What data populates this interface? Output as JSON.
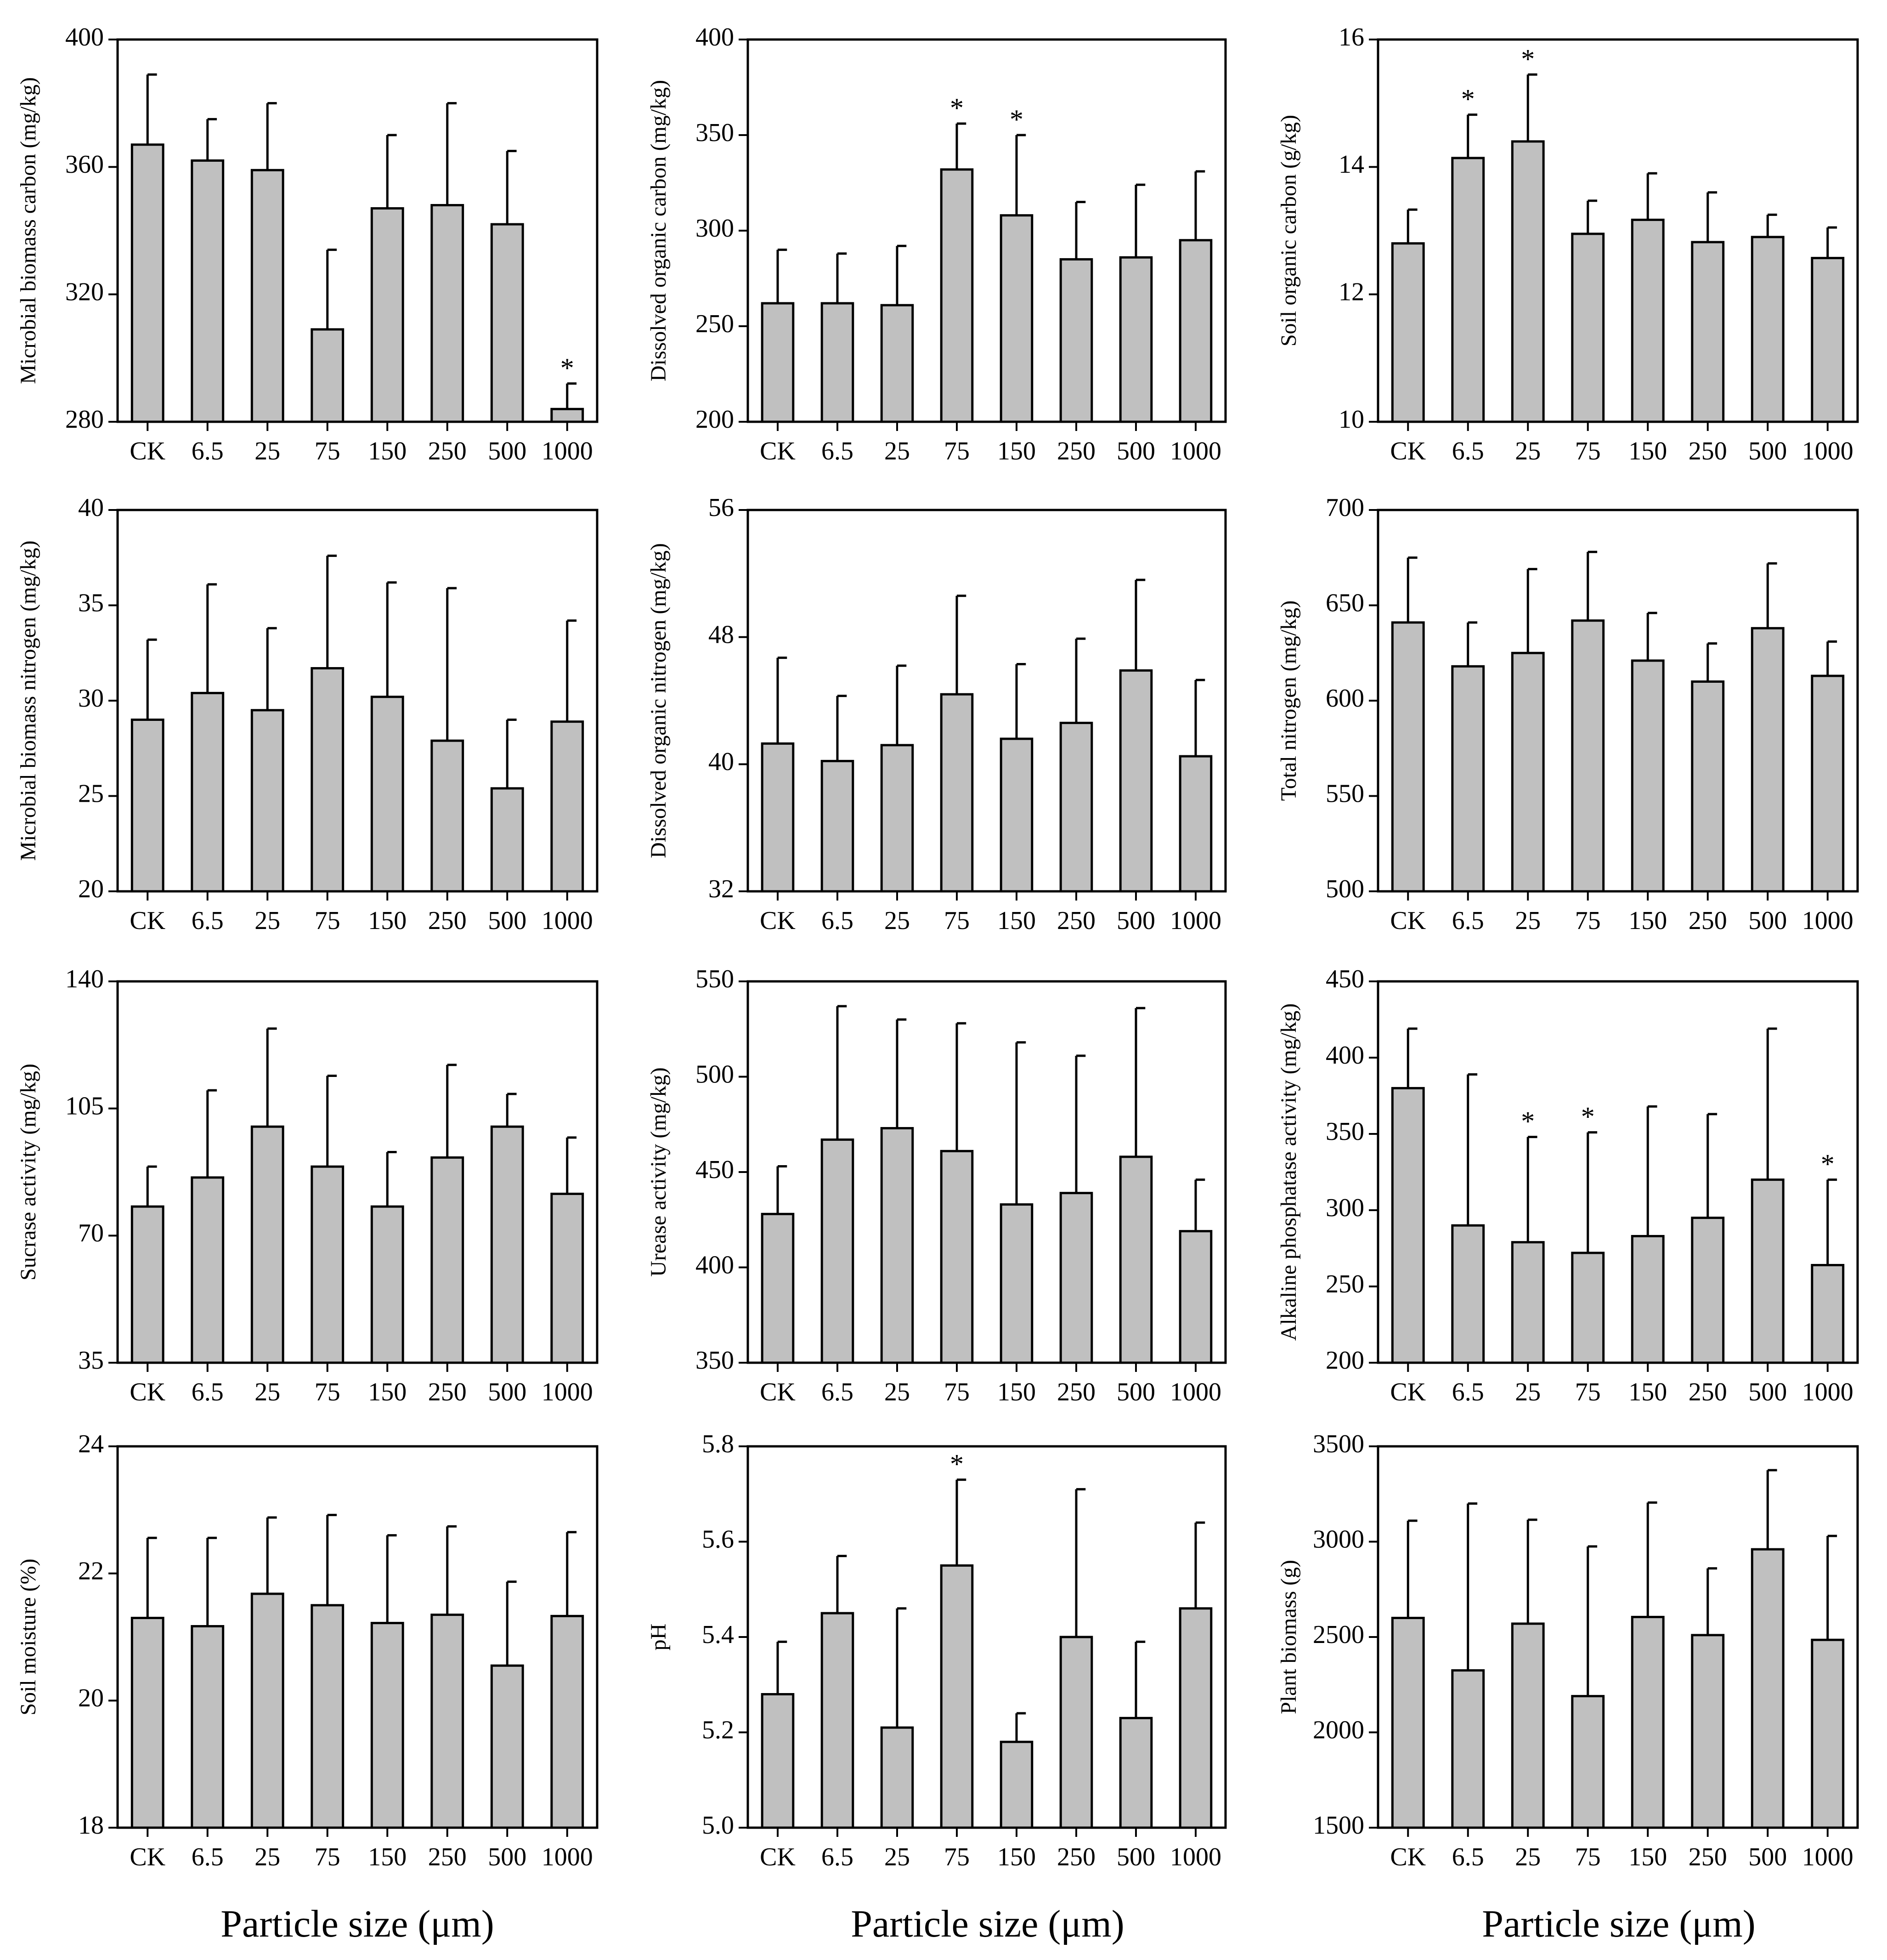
{
  "colors": {
    "bar_fill": "#c0c0c0",
    "bar_stroke": "#000000",
    "axis": "#000000"
  },
  "x_axis_label": "Particle size (μm)",
  "chart_data": [
    {
      "type": "bar",
      "ylabel": "Microbial biomass carbon  (mg/kg)",
      "ylim": [
        280,
        400
      ],
      "yticks": [
        280,
        320,
        360,
        400
      ],
      "categories": [
        "CK",
        "6.5",
        "25",
        "75",
        "150",
        "250",
        "500",
        "1000"
      ],
      "values": [
        367,
        362,
        359,
        309,
        347,
        348,
        342,
        284
      ],
      "errors": [
        389,
        375,
        380,
        334,
        370,
        380,
        365,
        292
      ],
      "significant": [
        false,
        false,
        false,
        false,
        false,
        false,
        false,
        true
      ]
    },
    {
      "type": "bar",
      "ylabel": "Dissolved organic carbon (mg/kg)",
      "ylim": [
        200,
        400
      ],
      "yticks": [
        200,
        250,
        300,
        350,
        400
      ],
      "categories": [
        "CK",
        "6.5",
        "25",
        "75",
        "150",
        "250",
        "500",
        "1000"
      ],
      "values": [
        262,
        262,
        261,
        332,
        308,
        285,
        286,
        295
      ],
      "errors": [
        290,
        288,
        292,
        356,
        350,
        315,
        324,
        331
      ],
      "significant": [
        false,
        false,
        false,
        true,
        true,
        false,
        false,
        false
      ]
    },
    {
      "type": "bar",
      "ylabel": "Soil organic carbon (g/kg)",
      "ylim": [
        10,
        16
      ],
      "yticks": [
        10,
        12,
        14,
        16
      ],
      "categories": [
        "CK",
        "6.5",
        "25",
        "75",
        "150",
        "250",
        "500",
        "1000"
      ],
      "values": [
        12.8,
        14.14,
        14.4,
        12.95,
        13.17,
        12.82,
        12.9,
        12.57
      ],
      "errors": [
        13.33,
        14.82,
        15.45,
        13.47,
        13.9,
        13.6,
        13.25,
        13.05
      ],
      "significant": [
        false,
        true,
        true,
        false,
        false,
        false,
        false,
        false
      ]
    },
    {
      "type": "bar",
      "ylabel": "Microbial biomass nitrogen (mg/kg)",
      "ylim": [
        20,
        40
      ],
      "yticks": [
        20,
        25,
        30,
        35,
        40
      ],
      "categories": [
        "CK",
        "6.5",
        "25",
        "75",
        "150",
        "250",
        "500",
        "1000"
      ],
      "values": [
        29.0,
        30.4,
        29.5,
        31.7,
        30.2,
        27.9,
        25.4,
        28.9
      ],
      "errors": [
        33.2,
        36.1,
        33.8,
        37.6,
        36.2,
        35.9,
        29.0,
        34.2
      ],
      "significant": [
        false,
        false,
        false,
        false,
        false,
        false,
        false,
        false
      ]
    },
    {
      "type": "bar",
      "ylabel": "Dissolved organic nitrogen (mg/kg)",
      "ylim": [
        32,
        56
      ],
      "yticks": [
        32,
        40,
        48,
        56
      ],
      "categories": [
        "CK",
        "6.5",
        "25",
        "75",
        "150",
        "250",
        "500",
        "1000"
      ],
      "values": [
        41.3,
        40.2,
        41.2,
        44.4,
        41.6,
        42.6,
        45.9,
        40.5
      ],
      "errors": [
        46.7,
        44.3,
        46.2,
        50.6,
        46.3,
        47.9,
        51.6,
        45.3
      ],
      "significant": [
        false,
        false,
        false,
        false,
        false,
        false,
        false,
        false
      ]
    },
    {
      "type": "bar",
      "ylabel": "Total nitrogen (mg/kg)",
      "ylim": [
        500,
        700
      ],
      "yticks": [
        500,
        550,
        600,
        650,
        700
      ],
      "categories": [
        "CK",
        "6.5",
        "25",
        "75",
        "150",
        "250",
        "500",
        "1000"
      ],
      "values": [
        641,
        618,
        625,
        642,
        621,
        610,
        638,
        613
      ],
      "errors": [
        675,
        641,
        669,
        678,
        646,
        630,
        672,
        631
      ],
      "significant": [
        false,
        false,
        false,
        false,
        false,
        false,
        false,
        false
      ]
    },
    {
      "type": "bar",
      "ylabel": "Sucrase activity (mg/kg)",
      "ylim": [
        35,
        140
      ],
      "yticks": [
        35,
        70,
        105,
        140
      ],
      "categories": [
        "CK",
        "6.5",
        "25",
        "75",
        "150",
        "250",
        "500",
        "1000"
      ],
      "values": [
        78,
        86,
        100,
        89,
        78,
        91.5,
        100,
        81.5
      ],
      "errors": [
        89,
        110,
        127,
        114,
        93,
        117,
        109,
        97
      ],
      "significant": [
        false,
        false,
        false,
        false,
        false,
        false,
        false,
        false
      ]
    },
    {
      "type": "bar",
      "ylabel": "Urease activity (mg/kg)",
      "ylim": [
        350,
        550
      ],
      "yticks": [
        350,
        400,
        450,
        500,
        550
      ],
      "categories": [
        "CK",
        "6.5",
        "25",
        "75",
        "150",
        "250",
        "500",
        "1000"
      ],
      "values": [
        428,
        467,
        473,
        461,
        433,
        439,
        458,
        419
      ],
      "errors": [
        453,
        537,
        530,
        528,
        518,
        511,
        536,
        446
      ],
      "significant": [
        false,
        false,
        false,
        false,
        false,
        false,
        false,
        false
      ]
    },
    {
      "type": "bar",
      "ylabel": "Alkaline phosphatase activity (mg/kg)",
      "ylim": [
        200,
        450
      ],
      "yticks": [
        200,
        250,
        300,
        350,
        400,
        450
      ],
      "categories": [
        "CK",
        "6.5",
        "25",
        "75",
        "150",
        "250",
        "500",
        "1000"
      ],
      "values": [
        380,
        290,
        279,
        272,
        283,
        295,
        320,
        264
      ],
      "errors": [
        419,
        389,
        348,
        351,
        368,
        363,
        419,
        320
      ],
      "significant": [
        false,
        false,
        true,
        true,
        false,
        false,
        false,
        true
      ]
    },
    {
      "type": "bar",
      "ylabel": "Soil moisture (%)",
      "ylim": [
        18,
        24
      ],
      "yticks": [
        18,
        20,
        22,
        24
      ],
      "categories": [
        "CK",
        "6.5",
        "25",
        "75",
        "150",
        "250",
        "500",
        "1000"
      ],
      "values": [
        21.3,
        21.17,
        21.68,
        21.5,
        21.22,
        21.35,
        20.55,
        21.33
      ],
      "errors": [
        22.56,
        22.56,
        22.88,
        22.92,
        22.6,
        22.74,
        21.87,
        22.65
      ],
      "significant": [
        false,
        false,
        false,
        false,
        false,
        false,
        false,
        false
      ]
    },
    {
      "type": "bar",
      "ylabel": "pH",
      "ylim": [
        5.0,
        5.8
      ],
      "yticks": [
        5.0,
        5.2,
        5.4,
        5.6,
        5.8
      ],
      "categories": [
        "CK",
        "6.5",
        "25",
        "75",
        "150",
        "250",
        "500",
        "1000"
      ],
      "values": [
        5.28,
        5.45,
        5.21,
        5.55,
        5.18,
        5.4,
        5.23,
        5.46
      ],
      "errors": [
        5.39,
        5.57,
        5.46,
        5.73,
        5.24,
        5.71,
        5.39,
        5.64
      ],
      "significant": [
        false,
        false,
        false,
        true,
        false,
        false,
        false,
        false
      ]
    },
    {
      "type": "bar",
      "ylabel": "Plant biomass (g)",
      "ylim": [
        1500,
        3500
      ],
      "yticks": [
        1500,
        2000,
        2500,
        3000,
        3500
      ],
      "categories": [
        "CK",
        "6.5",
        "25",
        "75",
        "150",
        "250",
        "500",
        "1000"
      ],
      "values": [
        2600,
        2325,
        2570,
        2190,
        2605,
        2510,
        2960,
        2485
      ],
      "errors": [
        3110,
        3200,
        3115,
        2975,
        3205,
        2860,
        3375,
        3030
      ],
      "significant": [
        false,
        false,
        false,
        false,
        false,
        false,
        false,
        false
      ]
    }
  ]
}
